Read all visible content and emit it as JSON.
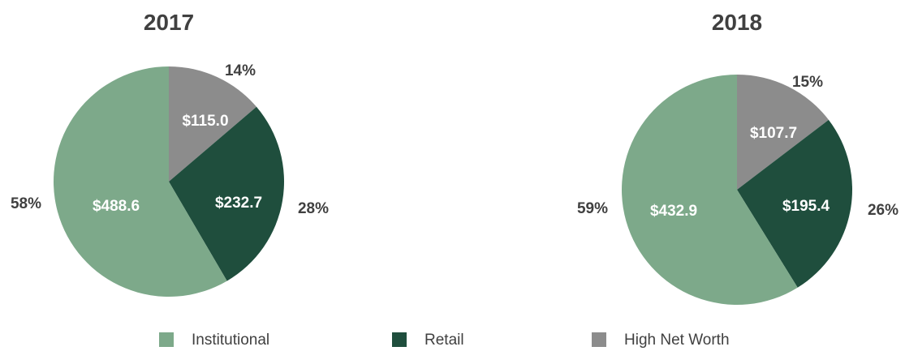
{
  "chart_data": [
    {
      "type": "pie",
      "title": "2017",
      "slices": [
        {
          "name": "High Net Worth",
          "value": 115.0,
          "value_label": "$115.0",
          "percent_label": "14%",
          "color": "#8c8c8c"
        },
        {
          "name": "Retail",
          "value": 232.7,
          "value_label": "$232.7",
          "percent_label": "28%",
          "color": "#1f4e3d"
        },
        {
          "name": "Institutional",
          "value": 488.6,
          "value_label": "$488.6",
          "percent_label": "58%",
          "color": "#7da98a"
        }
      ]
    },
    {
      "type": "pie",
      "title": "2018",
      "slices": [
        {
          "name": "High Net Worth",
          "value": 107.7,
          "value_label": "$107.7",
          "percent_label": "15%",
          "color": "#8c8c8c"
        },
        {
          "name": "Retail",
          "value": 195.4,
          "value_label": "$195.4",
          "percent_label": "26%",
          "color": "#1f4e3d"
        },
        {
          "name": "Institutional",
          "value": 432.9,
          "value_label": "$432.9",
          "percent_label": "59%",
          "color": "#7da98a"
        }
      ]
    }
  ],
  "legend": {
    "placement": "bottom",
    "items": [
      {
        "label": "Institutional",
        "color": "#7da98a"
      },
      {
        "label": "Retail",
        "color": "#1f4e3d"
      },
      {
        "label": "High Net Worth",
        "color": "#8c8c8c"
      }
    ]
  }
}
